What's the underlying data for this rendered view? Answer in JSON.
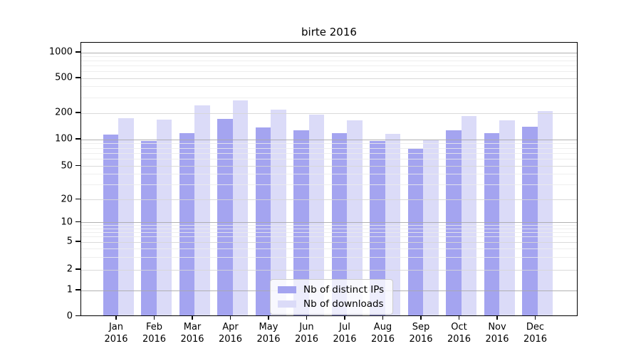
{
  "title": "birte 2016",
  "colors": {
    "bar_distinct_ips": "#a4a4f0",
    "bar_downloads": "#dbdbf8",
    "grid_major": "#a8a8a8",
    "grid_labeled": "#d6d6d6",
    "grid_minor": "#ebebeb",
    "axis_frame": "#000000",
    "legend_border": "#cccccc"
  },
  "legend": {
    "items": [
      {
        "label": "Nb of distinct IPs",
        "swatch": "bar_distinct_ips"
      },
      {
        "label": "Nb of downloads",
        "swatch": "bar_downloads"
      }
    ]
  },
  "chart_data": {
    "type": "bar",
    "title": "birte 2016",
    "categories": [
      "Jan 2016",
      "Feb 2016",
      "Mar 2016",
      "Apr 2016",
      "May 2016",
      "Jun 2016",
      "Jul 2016",
      "Aug 2016",
      "Sep 2016",
      "Oct 2016",
      "Nov 2016",
      "Dec 2016"
    ],
    "series": [
      {
        "name": "Nb of distinct IPs",
        "color_key": "bar_distinct_ips",
        "values": [
          110,
          93,
          116,
          168,
          134,
          125,
          115,
          94,
          77,
          124,
          116,
          137
        ]
      },
      {
        "name": "Nb of downloads",
        "color_key": "bar_downloads",
        "values": [
          172,
          165,
          240,
          270,
          215,
          186,
          161,
          113,
          95,
          180,
          160,
          204
        ]
      }
    ],
    "yscale": "symlog",
    "yticks": [
      0,
      1,
      2,
      5,
      10,
      20,
      50,
      100,
      200,
      500,
      1000
    ],
    "ytick_labels": [
      "0",
      "1",
      "2",
      "5",
      "10",
      "20",
      "50",
      "100",
      "200",
      "500",
      "1000"
    ],
    "ylim": [
      0,
      1300
    ],
    "xlabel": "",
    "ylabel": "",
    "grid": true,
    "legend_position": "lower center"
  }
}
